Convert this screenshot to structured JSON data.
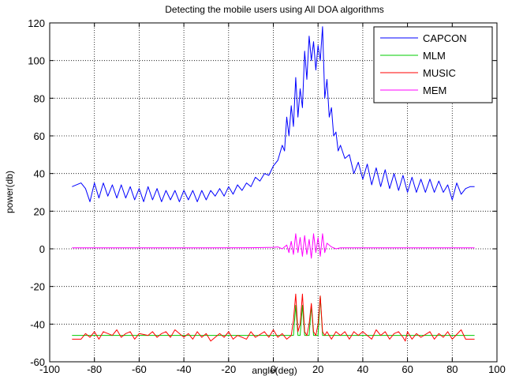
{
  "chart_data": {
    "type": "line",
    "title": "Detecting the mobile users using All DOA algorithms",
    "xlabel": "angle(deg)",
    "ylabel": "power(db)",
    "xlim": [
      -100,
      100
    ],
    "ylim": [
      -60,
      120
    ],
    "xticks": [
      -100,
      -80,
      -60,
      -40,
      -20,
      0,
      20,
      40,
      60,
      80,
      100
    ],
    "yticks": [
      -60,
      -40,
      -20,
      0,
      20,
      40,
      60,
      80,
      100,
      120
    ],
    "grid": true,
    "legend_position": "top-right",
    "series": [
      {
        "name": "CAPCON",
        "color": "#0000ff",
        "x": [
          -90,
          -86,
          -84,
          -82,
          -80,
          -78,
          -76,
          -74,
          -72,
          -70,
          -68,
          -66,
          -64,
          -62,
          -60,
          -58,
          -56,
          -54,
          -52,
          -50,
          -48,
          -46,
          -44,
          -42,
          -40,
          -38,
          -36,
          -34,
          -32,
          -30,
          -28,
          -26,
          -24,
          -22,
          -20,
          -18,
          -16,
          -14,
          -12,
          -10,
          -8,
          -6,
          -4,
          -2,
          0,
          2,
          4,
          5,
          6,
          7,
          8,
          9,
          10,
          11,
          12,
          13,
          14,
          15,
          16,
          17,
          18,
          19,
          20,
          21,
          22,
          23,
          24,
          25,
          26,
          27,
          28,
          29,
          30,
          32,
          34,
          36,
          38,
          40,
          42,
          44,
          46,
          48,
          50,
          52,
          54,
          56,
          58,
          60,
          62,
          64,
          66,
          68,
          70,
          72,
          74,
          76,
          78,
          80,
          82,
          84,
          86,
          88,
          90
        ],
        "y": [
          33,
          35,
          32,
          25,
          35,
          27,
          35,
          28,
          34,
          27,
          34,
          27,
          33,
          26,
          32,
          25,
          33,
          26,
          32,
          25,
          31,
          26,
          31,
          25,
          31,
          26,
          31,
          25,
          31,
          26,
          31,
          28,
          32,
          28,
          33,
          29,
          34,
          31,
          35,
          33,
          38,
          36,
          40,
          39,
          44,
          47,
          55,
          52,
          70,
          60,
          76,
          65,
          91,
          70,
          85,
          75,
          105,
          90,
          113,
          100,
          110,
          95,
          108,
          100,
          118,
          80,
          90,
          70,
          75,
          60,
          62,
          52,
          55,
          48,
          50,
          40,
          46,
          37,
          45,
          34,
          43,
          33,
          42,
          32,
          40,
          31,
          39,
          30,
          38,
          30,
          37,
          30,
          37,
          30,
          36,
          30,
          34,
          26,
          35,
          29,
          32,
          33,
          33
        ]
      },
      {
        "name": "MLM",
        "color": "#00cc00",
        "x": [
          -90,
          -80,
          -60,
          -40,
          -20,
          0,
          6,
          8,
          9,
          10,
          11,
          12,
          13,
          14,
          15,
          16,
          17,
          18,
          19,
          20,
          21,
          22,
          23,
          24,
          26,
          40,
          60,
          80,
          90
        ],
        "y": [
          -46,
          -46,
          -46,
          -46,
          -46,
          -46,
          -46,
          -46,
          -46,
          -30,
          -46,
          -46,
          -30,
          -46,
          -46,
          -46,
          -30,
          -46,
          -46,
          -46,
          -25,
          -46,
          -46,
          -46,
          -46,
          -46,
          -46,
          -46,
          -46
        ]
      },
      {
        "name": "MUSIC",
        "color": "#ff0000",
        "x": [
          -90,
          -86,
          -84,
          -82,
          -80,
          -78,
          -76,
          -72,
          -70,
          -68,
          -66,
          -64,
          -62,
          -60,
          -56,
          -54,
          -52,
          -50,
          -48,
          -46,
          -44,
          -40,
          -38,
          -36,
          -34,
          -32,
          -30,
          -28,
          -24,
          -22,
          -20,
          -18,
          -16,
          -12,
          -10,
          -8,
          -4,
          -2,
          0,
          2,
          4,
          6,
          8,
          9,
          10,
          11,
          12,
          13,
          14,
          15,
          16,
          17,
          18,
          19,
          20,
          21,
          22,
          23,
          24,
          26,
          28,
          30,
          32,
          34,
          36,
          38,
          40,
          44,
          46,
          48,
          50,
          52,
          54,
          56,
          58,
          59,
          60,
          62,
          64,
          66,
          70,
          72,
          74,
          76,
          78,
          80,
          84,
          86,
          88,
          90
        ],
        "y": [
          -48,
          -48,
          -45,
          -47,
          -44,
          -48,
          -44,
          -46,
          -43,
          -47,
          -45,
          -44,
          -48,
          -45,
          -46,
          -44,
          -47,
          -45,
          -44,
          -47,
          -43,
          -47,
          -45,
          -48,
          -44,
          -47,
          -45,
          -49,
          -45,
          -47,
          -44,
          -48,
          -46,
          -48,
          -44,
          -47,
          -44,
          -47,
          -43,
          -47,
          -45,
          -48,
          -46,
          -38,
          -24,
          -44,
          -40,
          -24,
          -44,
          -46,
          -40,
          -29,
          -44,
          -46,
          -40,
          -25,
          -44,
          -46,
          -44,
          -48,
          -44,
          -46,
          -44,
          -48,
          -44,
          -46,
          -44,
          -48,
          -43,
          -46,
          -44,
          -48,
          -45,
          -44,
          -47,
          -49,
          -44,
          -48,
          -45,
          -47,
          -44,
          -48,
          -45,
          -47,
          -44,
          -48,
          -43,
          -48,
          -48,
          -48
        ]
      },
      {
        "name": "MEM",
        "color": "#ff00ff",
        "x": [
          -90,
          -60,
          -30,
          -10,
          0,
          2,
          4,
          6,
          7,
          8,
          9,
          10,
          11,
          12,
          13,
          14,
          15,
          16,
          17,
          18,
          19,
          20,
          21,
          22,
          23,
          24,
          26,
          28,
          30,
          40,
          60,
          90
        ],
        "y": [
          0.5,
          0.5,
          0.5,
          0.6,
          0.8,
          1,
          0,
          2,
          -2,
          4,
          -3,
          8,
          -2,
          6,
          -4,
          7,
          -3,
          5,
          -5,
          8,
          -2,
          6,
          -4,
          8,
          -2,
          3,
          1,
          0,
          0.5,
          0.5,
          0.5,
          0.5
        ]
      }
    ]
  }
}
